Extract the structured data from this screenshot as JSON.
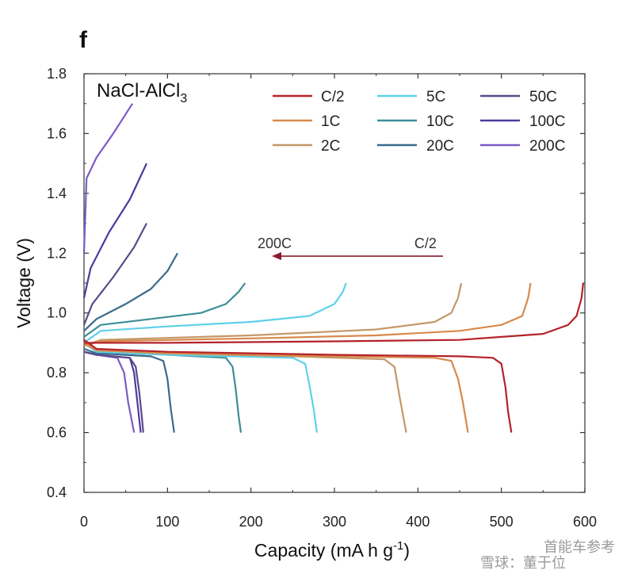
{
  "panel_label": "f",
  "watermark": "雪球：董于位",
  "watermark_top": "首能车参考",
  "chart_data": {
    "type": "line",
    "chemistry_label": "NaCl-AlCl",
    "chemistry_subscript": "3",
    "xlabel": "Capacity (mA h g",
    "xlabel_sup": "-1",
    "xlabel_end": ")",
    "ylabel": "Voltage (V)",
    "xlim": [
      0,
      600
    ],
    "ylim": [
      0.4,
      1.8
    ],
    "xticks": [
      0,
      100,
      200,
      300,
      400,
      500,
      600
    ],
    "yticks": [
      0.4,
      0.6,
      0.8,
      1.0,
      1.2,
      1.4,
      1.6,
      1.8
    ],
    "ytick_labels": [
      "0.4",
      "0.6",
      "0.8",
      "1.0",
      "1.2",
      "1.4",
      "1.6",
      "1.8"
    ],
    "grid": false,
    "legend_position": "top-right",
    "annotation": {
      "left_label": "200C",
      "right_label": "C/2",
      "y": 1.19,
      "x_start": 225,
      "x_end": 430,
      "color": "#8b1a2b"
    },
    "series": [
      {
        "name": "C/2",
        "color": "#b5222a",
        "charge": [
          [
            0,
            0.9
          ],
          [
            20,
            0.9
          ],
          [
            100,
            0.9
          ],
          [
            300,
            0.905
          ],
          [
            450,
            0.91
          ],
          [
            550,
            0.93
          ],
          [
            580,
            0.96
          ],
          [
            590,
            0.99
          ],
          [
            596,
            1.05
          ],
          [
            598,
            1.1
          ]
        ],
        "discharge": [
          [
            0,
            0.91
          ],
          [
            15,
            0.88
          ],
          [
            100,
            0.87
          ],
          [
            300,
            0.86
          ],
          [
            450,
            0.855
          ],
          [
            490,
            0.85
          ],
          [
            500,
            0.83
          ],
          [
            505,
            0.75
          ],
          [
            508,
            0.67
          ],
          [
            512,
            0.6
          ]
        ]
      },
      {
        "name": "1C",
        "color": "#d7894b",
        "charge": [
          [
            0,
            0.89
          ],
          [
            20,
            0.905
          ],
          [
            200,
            0.915
          ],
          [
            350,
            0.925
          ],
          [
            450,
            0.94
          ],
          [
            500,
            0.96
          ],
          [
            525,
            0.99
          ],
          [
            532,
            1.05
          ],
          [
            535,
            1.1
          ]
        ],
        "discharge": [
          [
            0,
            0.9
          ],
          [
            15,
            0.875
          ],
          [
            100,
            0.865
          ],
          [
            300,
            0.855
          ],
          [
            420,
            0.85
          ],
          [
            440,
            0.84
          ],
          [
            448,
            0.78
          ],
          [
            454,
            0.7
          ],
          [
            460,
            0.6
          ]
        ]
      },
      {
        "name": "2C",
        "color": "#c49868",
        "charge": [
          [
            0,
            0.89
          ],
          [
            20,
            0.91
          ],
          [
            200,
            0.925
          ],
          [
            350,
            0.945
          ],
          [
            420,
            0.97
          ],
          [
            440,
            1.0
          ],
          [
            448,
            1.05
          ],
          [
            452,
            1.1
          ]
        ],
        "discharge": [
          [
            0,
            0.9
          ],
          [
            15,
            0.875
          ],
          [
            100,
            0.865
          ],
          [
            250,
            0.855
          ],
          [
            360,
            0.845
          ],
          [
            372,
            0.82
          ],
          [
            378,
            0.72
          ],
          [
            382,
            0.66
          ],
          [
            386,
            0.6
          ]
        ]
      },
      {
        "name": "5C",
        "color": "#5fd0ea",
        "charge": [
          [
            0,
            0.9
          ],
          [
            20,
            0.94
          ],
          [
            100,
            0.955
          ],
          [
            200,
            0.97
          ],
          [
            270,
            0.99
          ],
          [
            300,
            1.03
          ],
          [
            310,
            1.07
          ],
          [
            314,
            1.1
          ]
        ],
        "discharge": [
          [
            0,
            0.9
          ],
          [
            15,
            0.87
          ],
          [
            100,
            0.86
          ],
          [
            250,
            0.85
          ],
          [
            265,
            0.83
          ],
          [
            270,
            0.76
          ],
          [
            275,
            0.68
          ],
          [
            279,
            0.6
          ]
        ]
      },
      {
        "name": "10C",
        "color": "#3d8e97",
        "charge": [
          [
            0,
            0.92
          ],
          [
            20,
            0.96
          ],
          [
            80,
            0.98
          ],
          [
            140,
            1.0
          ],
          [
            170,
            1.03
          ],
          [
            185,
            1.07
          ],
          [
            193,
            1.1
          ]
        ],
        "discharge": [
          [
            0,
            0.9
          ],
          [
            15,
            0.87
          ],
          [
            100,
            0.86
          ],
          [
            170,
            0.85
          ],
          [
            178,
            0.82
          ],
          [
            182,
            0.74
          ],
          [
            185,
            0.66
          ],
          [
            188,
            0.6
          ]
        ]
      },
      {
        "name": "20C",
        "color": "#3a6a8c",
        "charge": [
          [
            0,
            0.94
          ],
          [
            15,
            0.98
          ],
          [
            50,
            1.03
          ],
          [
            80,
            1.08
          ],
          [
            100,
            1.14
          ],
          [
            112,
            1.2
          ]
        ],
        "discharge": [
          [
            0,
            0.88
          ],
          [
            15,
            0.865
          ],
          [
            80,
            0.855
          ],
          [
            95,
            0.84
          ],
          [
            100,
            0.78
          ],
          [
            104,
            0.68
          ],
          [
            108,
            0.6
          ]
        ]
      },
      {
        "name": "50C",
        "color": "#5a4a8a",
        "charge": [
          [
            0,
            0.96
          ],
          [
            10,
            1.03
          ],
          [
            35,
            1.12
          ],
          [
            60,
            1.22
          ],
          [
            75,
            1.3
          ]
        ],
        "discharge": [
          [
            0,
            0.87
          ],
          [
            15,
            0.86
          ],
          [
            55,
            0.85
          ],
          [
            62,
            0.82
          ],
          [
            66,
            0.74
          ],
          [
            69,
            0.66
          ],
          [
            71,
            0.6
          ]
        ]
      },
      {
        "name": "100C",
        "color": "#4b3a9e",
        "charge": [
          [
            0,
            1.05
          ],
          [
            8,
            1.15
          ],
          [
            30,
            1.27
          ],
          [
            55,
            1.38
          ],
          [
            75,
            1.5
          ]
        ],
        "discharge": [
          [
            0,
            0.87
          ],
          [
            15,
            0.86
          ],
          [
            55,
            0.85
          ],
          [
            60,
            0.8
          ],
          [
            64,
            0.7
          ],
          [
            68,
            0.6
          ]
        ]
      },
      {
        "name": "200C",
        "color": "#7b5cc6",
        "charge": [
          [
            0,
            1.2
          ],
          [
            3,
            1.45
          ],
          [
            15,
            1.52
          ],
          [
            35,
            1.6
          ],
          [
            58,
            1.7
          ]
        ],
        "discharge": [
          [
            0,
            0.87
          ],
          [
            15,
            0.86
          ],
          [
            40,
            0.85
          ],
          [
            48,
            0.8
          ],
          [
            53,
            0.7
          ],
          [
            60,
            0.6
          ]
        ]
      }
    ]
  }
}
